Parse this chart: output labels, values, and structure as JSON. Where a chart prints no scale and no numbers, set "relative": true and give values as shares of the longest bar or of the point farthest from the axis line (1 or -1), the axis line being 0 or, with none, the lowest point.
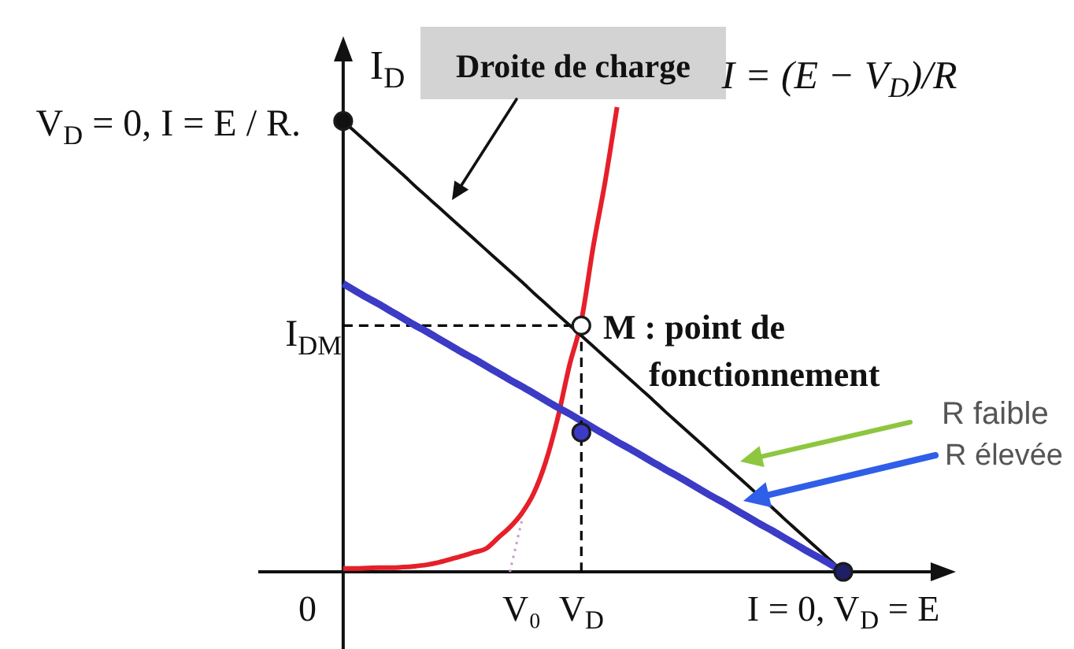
{
  "chart_data": {
    "type": "line",
    "relative": true,
    "ylabel": "I$_{D}$",
    "categories": [
      null,
      null,
      null,
      null,
      "0",
      null,
      null,
      null,
      null,
      null,
      null,
      null,
      null,
      null,
      null,
      null,
      null,
      null,
      null,
      null,
      null,
      null,
      "V₀",
      null,
      null,
      null,
      null,
      "V$_{D}$",
      null,
      null,
      null,
      null,
      null,
      null,
      null,
      null,
      null,
      null,
      null,
      null,
      null,
      null,
      null,
      null,
      null,
      null,
      null,
      null,
      null,
      "I = 0, V$_{D}$ = E",
      null,
      null,
      null,
      null,
      null,
      null,
      null,
      null
    ],
    "series": [
      {
        "color": "#e5202a",
        "values": [
          null,
          null,
          null,
          null,
          null,
          null,
          null,
          0.007,
          0.007,
          0.008,
          0.009,
          0.009,
          0.01,
          0.012,
          0.015,
          0.02,
          0.027,
          0.034,
          0.042,
          0.05,
          0.073,
          0.096,
          0.126,
          0.169,
          0.236,
          0.329,
          0.444,
          0.54,
          0.7,
          0.84,
          1,
          null,
          null,
          null,
          null,
          null,
          null,
          null,
          null,
          null,
          null,
          null,
          null,
          null,
          null,
          null,
          null,
          null,
          null,
          null,
          null,
          null,
          null,
          null,
          null,
          null,
          null,
          null
        ]
      },
      {
        "color": "#c79ac7",
        "line_style": "dotted",
        "values": [
          null,
          null,
          null,
          null,
          null,
          null,
          null,
          null,
          null,
          null,
          null,
          null,
          null,
          null,
          null,
          null,
          null,
          null,
          null,
          null,
          null,
          0,
          0.11,
          null,
          null,
          null,
          null,
          null,
          null,
          null,
          null,
          null,
          null,
          null,
          null,
          null,
          null,
          null,
          null,
          null,
          null,
          null,
          null,
          null,
          null,
          null,
          null,
          null,
          null,
          null,
          null,
          null,
          null,
          null,
          null,
          null,
          null,
          null
        ]
      },
      {
        "color": "#111111",
        "values": [
          null,
          null,
          null,
          null,
          null,
          null,
          null,
          0.97,
          0.947,
          0.924,
          0.901,
          0.878,
          0.855,
          0.831,
          0.808,
          0.785,
          0.762,
          0.739,
          0.716,
          0.693,
          0.67,
          0.647,
          0.624,
          0.6,
          0.577,
          0.554,
          0.531,
          0.508,
          0.485,
          0.462,
          0.439,
          0.416,
          0.393,
          0.37,
          0.346,
          0.323,
          0.3,
          0.277,
          0.254,
          0.231,
          0.208,
          0.185,
          0.162,
          0.139,
          0.115,
          0.092,
          0.069,
          0.046,
          0.023,
          0,
          null,
          null,
          null,
          null,
          null,
          null,
          null,
          null
        ]
      },
      {
        "color": "#3b3bc6",
        "values": [
          null,
          null,
          null,
          null,
          null,
          null,
          null,
          0.62,
          0.605,
          0.59,
          0.576,
          0.561,
          0.546,
          0.531,
          0.517,
          0.502,
          0.487,
          0.472,
          0.458,
          0.443,
          0.428,
          0.413,
          0.399,
          0.384,
          0.369,
          0.354,
          0.34,
          0.325,
          0.31,
          0.295,
          0.28,
          0.266,
          0.251,
          0.236,
          0.221,
          0.207,
          0.192,
          0.177,
          0.162,
          0.148,
          0.133,
          0.118,
          0.103,
          0.089,
          0.074,
          0.059,
          0.044,
          0.03,
          0.015,
          0,
          null,
          null,
          null,
          null,
          null,
          null,
          null,
          null
        ]
      },
      {
        "color": "#000000",
        "line_style": "dashed",
        "x": [
          "V$_{D}$",
          "V$_{D}$"
        ],
        "values": [
          0,
          0.53
        ]
      },
      {
        "type": "scatter",
        "marker": "circle",
        "color": "#111111",
        "values": [
          null,
          null,
          null,
          null,
          null,
          null,
          null,
          0.97,
          null,
          null,
          null,
          null,
          null,
          null,
          null,
          null,
          null,
          null,
          null,
          null,
          null,
          null,
          null,
          null,
          null,
          null,
          null,
          null,
          null,
          null,
          null,
          null,
          null,
          null,
          null,
          null,
          null,
          null,
          null,
          null,
          null,
          null,
          null,
          null,
          null,
          null,
          null,
          null,
          null,
          null,
          null,
          null,
          null,
          null,
          null,
          null,
          null,
          null
        ]
      },
      {
        "type": "scatter",
        "marker": "circle",
        "color": "#1f1f66",
        "values": [
          null,
          null,
          null,
          null,
          null,
          null,
          null,
          null,
          null,
          null,
          null,
          null,
          null,
          null,
          null,
          null,
          null,
          null,
          null,
          null,
          null,
          null,
          null,
          null,
          null,
          null,
          null,
          null,
          null,
          null,
          null,
          null,
          null,
          null,
          null,
          null,
          null,
          null,
          null,
          null,
          null,
          null,
          null,
          null,
          null,
          null,
          null,
          null,
          null,
          0,
          null,
          null,
          null,
          null,
          null,
          null,
          null,
          null
        ]
      },
      {
        "type": "scatter",
        "marker": "circle",
        "color": "#ffffff",
        "values": [
          null,
          null,
          null,
          null,
          null,
          null,
          null,
          null,
          null,
          null,
          null,
          null,
          null,
          null,
          null,
          null,
          null,
          null,
          null,
          null,
          null,
          null,
          null,
          null,
          null,
          null,
          null,
          0.53,
          null,
          null,
          null,
          null,
          null,
          null,
          null,
          null,
          null,
          null,
          null,
          null,
          null,
          null,
          null,
          null,
          null,
          null,
          null,
          null,
          null,
          null,
          null,
          null,
          null,
          null,
          null,
          null,
          null,
          null
        ]
      },
      {
        "type": "scatter",
        "marker": "circle",
        "color": "#3b3bc6",
        "values": [
          null,
          null,
          null,
          null,
          null,
          null,
          null,
          null,
          null,
          null,
          null,
          null,
          null,
          null,
          null,
          null,
          null,
          null,
          null,
          null,
          null,
          null,
          null,
          null,
          null,
          null,
          null,
          0.3,
          null,
          null,
          null,
          null,
          null,
          null,
          null,
          null,
          null,
          null,
          null,
          null,
          null,
          null,
          null,
          null,
          null,
          null,
          null,
          null,
          null,
          null,
          null,
          null,
          null,
          null,
          null,
          null,
          null,
          null
        ]
      }
    ],
    "ref_lines": [
      {
        "axis": "y",
        "value": 0.53,
        "label": "I$_{DM}$",
        "color": "#000000",
        "line_style": "dashed"
      }
    ],
    "annotations": [
      "V$_{D}$ = 0, I = E / R.",
      "Droite de charge",
      "I = (E − V$_{D}$)/R",
      "M : point de fonctionnement",
      "R faible",
      "R élevée"
    ]
  }
}
